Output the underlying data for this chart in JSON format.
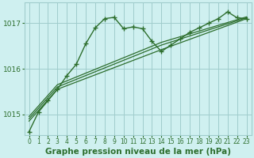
{
  "background_color": "#cff0f0",
  "grid_color": "#a0cccc",
  "line_color": "#2d6e2d",
  "title": "Graphe pression niveau de la mer (hPa)",
  "title_fontsize": 7.5,
  "xlim": [
    -0.5,
    23.5
  ],
  "ylim": [
    1014.55,
    1017.45
  ],
  "yticks": [
    1015,
    1016,
    1017
  ],
  "xticks": [
    0,
    1,
    2,
    3,
    4,
    5,
    6,
    7,
    8,
    9,
    10,
    11,
    12,
    13,
    14,
    15,
    16,
    17,
    18,
    19,
    20,
    21,
    22,
    23
  ],
  "series": {
    "trend1": {
      "x": [
        0,
        3,
        14,
        23
      ],
      "y": [
        1014.85,
        1015.55,
        1016.42,
        1017.1
      ],
      "marker": null,
      "linestyle": "-",
      "linewidth": 0.9
    },
    "trend2": {
      "x": [
        0,
        3,
        14,
        23
      ],
      "y": [
        1014.9,
        1015.6,
        1016.52,
        1017.12
      ],
      "marker": null,
      "linestyle": "-",
      "linewidth": 0.9
    },
    "trend3": {
      "x": [
        0,
        3,
        14,
        23
      ],
      "y": [
        1014.95,
        1015.65,
        1016.58,
        1017.14
      ],
      "marker": null,
      "linestyle": "-",
      "linewidth": 0.9
    },
    "peak_line": {
      "x": [
        0,
        1,
        2,
        3,
        4,
        5,
        6,
        7,
        8,
        9,
        10,
        11,
        12,
        13,
        14,
        15,
        16,
        17,
        18,
        19,
        20,
        21,
        22,
        23
      ],
      "y": [
        1014.62,
        1015.05,
        1015.3,
        1015.55,
        1015.85,
        1016.1,
        1016.55,
        1016.9,
        1017.1,
        1017.13,
        1016.88,
        1016.92,
        1016.88,
        1016.6,
        1016.38,
        1016.52,
        1016.66,
        1016.8,
        1016.9,
        1017.0,
        1017.1,
        1017.25,
        1017.12,
        1017.1
      ],
      "marker": "+",
      "markersize": 4,
      "linestyle": "-",
      "linewidth": 1.0
    }
  }
}
